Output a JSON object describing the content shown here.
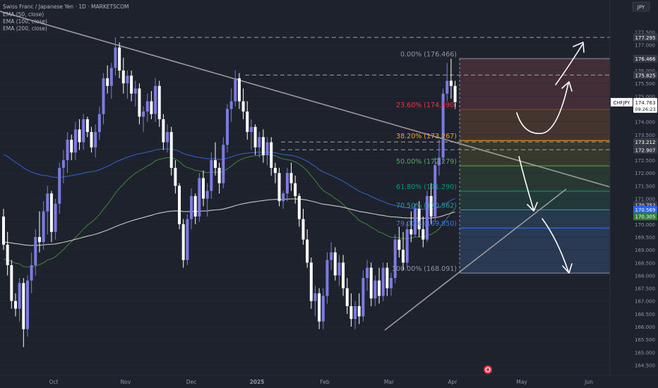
{
  "header": {
    "symbol_title": "Swiss Franc / Japanese Yen · 1D · MARKETSCOM",
    "indicators": [
      "EMA (50, close)",
      "EMA (100, close)",
      "EMA (200, close)"
    ],
    "currency_button": "JPY"
  },
  "colors": {
    "background": "#1e222d",
    "candle_up": "#7c7ce0",
    "candle_down": "#ffffff",
    "ema50": "#3f7d3a",
    "ema100": "#2f5fc2",
    "ema200": "#c9c9c9",
    "trendline": "#9b9b9b",
    "axis_text": "#8f96a8"
  },
  "chart_data": {
    "type": "candlestick",
    "symbol": "CHFJPY",
    "interval": "1D",
    "y_axis": {
      "ticks": [
        164.5,
        165.0,
        165.5,
        166.0,
        166.5,
        167.0,
        167.5,
        168.0,
        168.5,
        169.0,
        169.5,
        170.0,
        170.5,
        171.0,
        171.5,
        172.0,
        172.5,
        173.0,
        173.5,
        174.0,
        174.5,
        175.0,
        175.5,
        176.0,
        176.5,
        177.0,
        177.5
      ],
      "tick_labels": [
        "164.500",
        "165.000",
        "165.500",
        "166.000",
        "166.500",
        "167.000",
        "167.500",
        "168.000",
        "168.500",
        "169.000",
        "169.500",
        "170.000",
        "170.500",
        "171.000",
        "171.500",
        "172.000",
        "172.500",
        "173.000",
        "173.500",
        "174.000",
        "174.500",
        "175.000",
        "175.500",
        "176.000",
        "176.500",
        "177.000",
        "177.500"
      ],
      "range": [
        164.2,
        177.9
      ]
    },
    "x_axis": {
      "labels": [
        "Oct",
        "Nov",
        "Dec",
        "2025",
        "Feb",
        "Mar",
        "Apr",
        "May",
        "Jun"
      ]
    },
    "price_labels": [
      {
        "text": "177.295",
        "value": 177.295,
        "style": "dark"
      },
      {
        "text": "176.466",
        "value": 176.466,
        "style": "dark"
      },
      {
        "text": "175.825",
        "value": 175.825,
        "style": "dark"
      },
      {
        "text": "173.212",
        "value": 173.212,
        "style": "dark"
      },
      {
        "text": "172.907",
        "value": 172.907,
        "style": "dark"
      },
      {
        "text": "170.752",
        "value": 170.752,
        "style": "dark"
      },
      {
        "text": "170.569",
        "value": 170.569,
        "style": "blue"
      },
      {
        "text": "170.305",
        "value": 170.305,
        "style": "green"
      }
    ],
    "current_price": {
      "symbol": "CHFJPY",
      "value": 174.763,
      "label": "174.763",
      "countdown": "09:26:23"
    },
    "fibonacci": {
      "levels": [
        {
          "label": "0.00% (176.466)",
          "ratio": 0.0,
          "value": 176.466,
          "color": "#8f96a8",
          "fill": "#4a2f3a"
        },
        {
          "label": "23.60% (174.490)",
          "ratio": 0.236,
          "value": 174.49,
          "color": "#f23645",
          "fill": "#4b3a2f"
        },
        {
          "label": "38.20% (173.267)",
          "ratio": 0.382,
          "value": 173.267,
          "color": "#f7a21b",
          "fill": "#3d3d2e"
        },
        {
          "label": "50.00% (172.279)",
          "ratio": 0.5,
          "value": 172.279,
          "color": "#4caf50",
          "fill": "#2b3d33"
        },
        {
          "label": "61.80% (171.290)",
          "ratio": 0.618,
          "value": 171.29,
          "color": "#089981",
          "fill": "#233d3d"
        },
        {
          "label": "70.50% (170.562)",
          "ratio": 0.705,
          "value": 170.562,
          "color": "#26a69a",
          "fill": "#2a3e56"
        },
        {
          "label": "79.00% (169.850)",
          "ratio": 0.79,
          "value": 169.85,
          "color": "#3179f5",
          "fill": "#2d3d5c"
        },
        {
          "label": "100.00% (168.091)",
          "ratio": 1.0,
          "value": 168.091,
          "color": "#8f96a8",
          "fill": null
        }
      ]
    },
    "horizontal_levels": [
      177.295,
      175.825,
      173.212,
      172.907
    ],
    "trendlines": [
      {
        "name": "descending",
        "points": [
          [
            0,
            178.2
          ],
          [
            155,
            171.6
          ]
        ]
      },
      {
        "name": "ascending",
        "points": [
          [
            108,
            165.9
          ],
          [
            136,
            171.4
          ]
        ]
      }
    ],
    "candles": [
      {
        "o": 170.3,
        "h": 170.6,
        "l": 169.0,
        "c": 169.2
      },
      {
        "o": 169.2,
        "h": 169.7,
        "l": 168.0,
        "c": 168.4
      },
      {
        "o": 168.4,
        "h": 168.6,
        "l": 166.7,
        "c": 167.0
      },
      {
        "o": 167.0,
        "h": 167.3,
        "l": 166.4,
        "c": 166.7
      },
      {
        "o": 166.7,
        "h": 167.9,
        "l": 166.2,
        "c": 167.7
      },
      {
        "o": 167.7,
        "h": 167.9,
        "l": 165.2,
        "c": 165.9
      },
      {
        "o": 165.9,
        "h": 168.0,
        "l": 165.6,
        "c": 167.8
      },
      {
        "o": 167.8,
        "h": 168.9,
        "l": 167.3,
        "c": 168.4
      },
      {
        "o": 168.4,
        "h": 169.8,
        "l": 168.0,
        "c": 169.5
      },
      {
        "o": 169.5,
        "h": 170.5,
        "l": 168.9,
        "c": 169.3
      },
      {
        "o": 169.3,
        "h": 170.9,
        "l": 169.0,
        "c": 170.5
      },
      {
        "o": 170.5,
        "h": 171.5,
        "l": 169.6,
        "c": 171.2
      },
      {
        "o": 171.2,
        "h": 171.3,
        "l": 169.3,
        "c": 169.7
      },
      {
        "o": 169.7,
        "h": 171.0,
        "l": 169.4,
        "c": 170.8
      },
      {
        "o": 170.8,
        "h": 172.4,
        "l": 170.4,
        "c": 172.2
      },
      {
        "o": 172.2,
        "h": 172.9,
        "l": 171.6,
        "c": 172.5
      },
      {
        "o": 172.5,
        "h": 173.6,
        "l": 172.0,
        "c": 173.3
      },
      {
        "o": 173.3,
        "h": 173.5,
        "l": 172.5,
        "c": 172.8
      },
      {
        "o": 172.8,
        "h": 174.0,
        "l": 172.5,
        "c": 173.7
      },
      {
        "o": 173.7,
        "h": 174.1,
        "l": 172.9,
        "c": 173.2
      },
      {
        "o": 173.2,
        "h": 174.3,
        "l": 172.9,
        "c": 174.1
      },
      {
        "o": 174.1,
        "h": 174.2,
        "l": 173.4,
        "c": 173.6
      },
      {
        "o": 173.6,
        "h": 173.8,
        "l": 172.8,
        "c": 173.0
      },
      {
        "o": 173.0,
        "h": 173.9,
        "l": 172.6,
        "c": 173.6
      },
      {
        "o": 173.6,
        "h": 174.6,
        "l": 173.3,
        "c": 174.3
      },
      {
        "o": 174.3,
        "h": 175.9,
        "l": 173.9,
        "c": 175.7
      },
      {
        "o": 175.7,
        "h": 176.2,
        "l": 175.1,
        "c": 175.4
      },
      {
        "o": 175.4,
        "h": 176.3,
        "l": 174.9,
        "c": 176.1
      },
      {
        "o": 176.1,
        "h": 177.3,
        "l": 175.8,
        "c": 176.9
      },
      {
        "o": 176.9,
        "h": 177.1,
        "l": 175.7,
        "c": 176.0
      },
      {
        "o": 176.0,
        "h": 176.5,
        "l": 175.1,
        "c": 175.5
      },
      {
        "o": 175.5,
        "h": 176.0,
        "l": 174.9,
        "c": 175.8
      },
      {
        "o": 175.8,
        "h": 176.0,
        "l": 174.8,
        "c": 175.1
      },
      {
        "o": 175.1,
        "h": 175.6,
        "l": 174.6,
        "c": 175.3
      },
      {
        "o": 175.3,
        "h": 175.5,
        "l": 173.9,
        "c": 174.2
      },
      {
        "o": 174.2,
        "h": 174.6,
        "l": 173.6,
        "c": 174.4
      },
      {
        "o": 174.4,
        "h": 175.1,
        "l": 174.0,
        "c": 174.8
      },
      {
        "o": 174.8,
        "h": 175.2,
        "l": 174.1,
        "c": 174.3
      },
      {
        "o": 174.3,
        "h": 175.7,
        "l": 174.0,
        "c": 175.4
      },
      {
        "o": 175.4,
        "h": 175.6,
        "l": 173.8,
        "c": 174.1
      },
      {
        "o": 174.1,
        "h": 174.3,
        "l": 172.9,
        "c": 173.2
      },
      {
        "o": 173.2,
        "h": 173.9,
        "l": 172.8,
        "c": 173.6
      },
      {
        "o": 173.6,
        "h": 173.8,
        "l": 171.9,
        "c": 172.2
      },
      {
        "o": 172.2,
        "h": 172.5,
        "l": 171.2,
        "c": 171.5
      },
      {
        "o": 171.5,
        "h": 171.6,
        "l": 169.8,
        "c": 170.0
      },
      {
        "o": 170.0,
        "h": 170.2,
        "l": 168.3,
        "c": 168.6
      },
      {
        "o": 168.6,
        "h": 170.4,
        "l": 168.4,
        "c": 170.2
      },
      {
        "o": 170.2,
        "h": 171.4,
        "l": 169.8,
        "c": 171.1
      },
      {
        "o": 171.1,
        "h": 171.2,
        "l": 170.0,
        "c": 170.3
      },
      {
        "o": 170.3,
        "h": 172.0,
        "l": 170.1,
        "c": 171.8
      },
      {
        "o": 171.8,
        "h": 172.1,
        "l": 170.7,
        "c": 171.0
      },
      {
        "o": 171.0,
        "h": 171.6,
        "l": 170.3,
        "c": 171.3
      },
      {
        "o": 171.3,
        "h": 172.8,
        "l": 171.0,
        "c": 172.5
      },
      {
        "o": 172.5,
        "h": 173.2,
        "l": 171.9,
        "c": 172.2
      },
      {
        "o": 172.2,
        "h": 172.4,
        "l": 171.2,
        "c": 171.6
      },
      {
        "o": 171.6,
        "h": 173.4,
        "l": 171.4,
        "c": 173.1
      },
      {
        "o": 173.1,
        "h": 174.7,
        "l": 172.8,
        "c": 174.5
      },
      {
        "o": 174.5,
        "h": 175.3,
        "l": 174.0,
        "c": 174.8
      },
      {
        "o": 174.8,
        "h": 176.0,
        "l": 174.6,
        "c": 175.7
      },
      {
        "o": 175.7,
        "h": 175.9,
        "l": 174.5,
        "c": 174.8
      },
      {
        "o": 174.8,
        "h": 175.3,
        "l": 174.1,
        "c": 174.4
      },
      {
        "o": 174.4,
        "h": 174.8,
        "l": 173.3,
        "c": 173.6
      },
      {
        "o": 173.6,
        "h": 174.1,
        "l": 172.9,
        "c": 173.8
      },
      {
        "o": 173.8,
        "h": 173.9,
        "l": 172.7,
        "c": 173.0
      },
      {
        "o": 173.0,
        "h": 173.6,
        "l": 172.6,
        "c": 173.4
      },
      {
        "o": 173.4,
        "h": 173.7,
        "l": 172.4,
        "c": 172.7
      },
      {
        "o": 172.7,
        "h": 173.4,
        "l": 172.3,
        "c": 173.2
      },
      {
        "o": 173.2,
        "h": 173.4,
        "l": 171.9,
        "c": 172.2
      },
      {
        "o": 172.2,
        "h": 172.4,
        "l": 171.6,
        "c": 172.0
      },
      {
        "o": 172.0,
        "h": 172.2,
        "l": 170.7,
        "c": 170.9
      },
      {
        "o": 170.9,
        "h": 171.3,
        "l": 170.6,
        "c": 171.2
      },
      {
        "o": 171.2,
        "h": 172.2,
        "l": 170.9,
        "c": 172.0
      },
      {
        "o": 172.0,
        "h": 172.4,
        "l": 171.3,
        "c": 171.6
      },
      {
        "o": 171.6,
        "h": 171.9,
        "l": 170.8,
        "c": 171.1
      },
      {
        "o": 171.1,
        "h": 171.2,
        "l": 169.9,
        "c": 170.2
      },
      {
        "o": 170.2,
        "h": 170.6,
        "l": 169.2,
        "c": 169.4
      },
      {
        "o": 169.4,
        "h": 169.8,
        "l": 168.3,
        "c": 168.5
      },
      {
        "o": 168.5,
        "h": 168.7,
        "l": 166.7,
        "c": 167.0
      },
      {
        "o": 167.0,
        "h": 167.6,
        "l": 166.4,
        "c": 167.3
      },
      {
        "o": 167.3,
        "h": 167.5,
        "l": 165.9,
        "c": 166.2
      },
      {
        "o": 166.2,
        "h": 167.5,
        "l": 165.9,
        "c": 167.2
      },
      {
        "o": 167.2,
        "h": 168.9,
        "l": 166.9,
        "c": 168.6
      },
      {
        "o": 168.6,
        "h": 169.3,
        "l": 168.2,
        "c": 168.9
      },
      {
        "o": 168.9,
        "h": 169.1,
        "l": 167.8,
        "c": 168.0
      },
      {
        "o": 168.0,
        "h": 168.8,
        "l": 167.6,
        "c": 168.5
      },
      {
        "o": 168.5,
        "h": 168.8,
        "l": 167.2,
        "c": 167.5
      },
      {
        "o": 167.5,
        "h": 167.9,
        "l": 166.5,
        "c": 166.8
      },
      {
        "o": 166.8,
        "h": 167.3,
        "l": 166.0,
        "c": 166.3
      },
      {
        "o": 166.3,
        "h": 167.0,
        "l": 165.9,
        "c": 166.8
      },
      {
        "o": 166.8,
        "h": 167.3,
        "l": 166.1,
        "c": 166.4
      },
      {
        "o": 166.4,
        "h": 168.2,
        "l": 166.2,
        "c": 167.9
      },
      {
        "o": 167.9,
        "h": 168.6,
        "l": 167.4,
        "c": 168.3
      },
      {
        "o": 168.3,
        "h": 168.5,
        "l": 166.8,
        "c": 167.1
      },
      {
        "o": 167.1,
        "h": 168.0,
        "l": 166.8,
        "c": 167.8
      },
      {
        "o": 167.8,
        "h": 168.3,
        "l": 166.9,
        "c": 167.2
      },
      {
        "o": 167.2,
        "h": 168.5,
        "l": 167.0,
        "c": 168.3
      },
      {
        "o": 168.3,
        "h": 168.5,
        "l": 167.2,
        "c": 167.5
      },
      {
        "o": 167.5,
        "h": 168.1,
        "l": 167.2,
        "c": 167.9
      },
      {
        "o": 167.9,
        "h": 169.6,
        "l": 167.7,
        "c": 169.4
      },
      {
        "o": 169.4,
        "h": 169.9,
        "l": 168.7,
        "c": 169.0
      },
      {
        "o": 169.0,
        "h": 169.7,
        "l": 168.2,
        "c": 168.5
      },
      {
        "o": 168.5,
        "h": 170.1,
        "l": 168.3,
        "c": 169.8
      },
      {
        "o": 169.8,
        "h": 170.5,
        "l": 169.3,
        "c": 169.6
      },
      {
        "o": 169.6,
        "h": 170.8,
        "l": 169.5,
        "c": 170.6
      },
      {
        "o": 170.6,
        "h": 170.9,
        "l": 169.5,
        "c": 169.8
      },
      {
        "o": 169.8,
        "h": 170.3,
        "l": 169.1,
        "c": 169.4
      },
      {
        "o": 169.4,
        "h": 171.3,
        "l": 169.3,
        "c": 171.1
      },
      {
        "o": 171.1,
        "h": 171.6,
        "l": 170.0,
        "c": 170.3
      },
      {
        "o": 170.3,
        "h": 172.6,
        "l": 170.1,
        "c": 172.3
      },
      {
        "o": 172.3,
        "h": 173.3,
        "l": 171.9,
        "c": 172.6
      },
      {
        "o": 172.6,
        "h": 175.3,
        "l": 172.4,
        "c": 175.1
      },
      {
        "o": 175.1,
        "h": 176.3,
        "l": 174.8,
        "c": 175.6
      },
      {
        "o": 175.6,
        "h": 176.466,
        "l": 174.9,
        "c": 175.4
      },
      {
        "o": 175.4,
        "h": 175.6,
        "l": 174.5,
        "c": 174.763
      }
    ]
  }
}
